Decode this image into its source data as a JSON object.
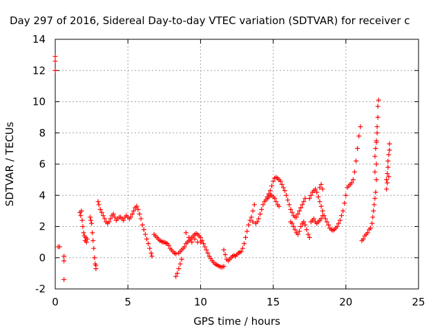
{
  "chart_data": {
    "type": "scatter",
    "title": "Day 297 of 2016, Sidereal Day-to-day VTEC variation (SDTVAR) for receiver c",
    "xlabel": "GPS time / hours",
    "ylabel": "SDTVAR / TECUs",
    "xlim": [
      0,
      25
    ],
    "ylim": [
      -2,
      14
    ],
    "xticks": [
      0,
      5,
      10,
      15,
      20,
      25
    ],
    "yticks": [
      -2,
      0,
      2,
      4,
      6,
      8,
      10,
      12,
      14
    ],
    "grid": true,
    "marker": "plus",
    "color": "#ff0000",
    "series": [
      {
        "points": [
          [
            0.0,
            12.9
          ],
          [
            0.0,
            12.6
          ],
          [
            0.0,
            12.0
          ],
          [
            0.2,
            0.7
          ],
          [
            0.3,
            0.7
          ],
          [
            0.6,
            0.1
          ],
          [
            0.6,
            -0.2
          ],
          [
            0.6,
            -1.4
          ],
          [
            1.7,
            2.9
          ],
          [
            1.75,
            2.7
          ],
          [
            1.8,
            3.0
          ],
          [
            1.85,
            2.4
          ],
          [
            1.9,
            2.0
          ],
          [
            1.95,
            1.6
          ],
          [
            2.0,
            1.4
          ],
          [
            2.05,
            1.1
          ],
          [
            2.1,
            1.3
          ],
          [
            2.15,
            1.0
          ],
          [
            2.2,
            1.2
          ],
          [
            2.4,
            2.6
          ],
          [
            2.45,
            2.4
          ],
          [
            2.5,
            2.2
          ],
          [
            2.55,
            1.6
          ],
          [
            2.6,
            1.1
          ],
          [
            2.65,
            0.6
          ],
          [
            2.7,
            0.0
          ],
          [
            2.75,
            -0.4
          ],
          [
            2.8,
            -0.7
          ],
          [
            2.8,
            -0.5
          ],
          [
            2.95,
            3.6
          ],
          [
            3.0,
            3.4
          ],
          [
            3.1,
            3.1
          ],
          [
            3.2,
            2.9
          ],
          [
            3.3,
            2.7
          ],
          [
            3.4,
            2.5
          ],
          [
            3.5,
            2.3
          ],
          [
            3.6,
            2.2
          ],
          [
            3.7,
            2.3
          ],
          [
            3.8,
            2.5
          ],
          [
            3.9,
            2.7
          ],
          [
            4.0,
            2.8
          ],
          [
            4.1,
            2.6
          ],
          [
            4.2,
            2.4
          ],
          [
            4.3,
            2.5
          ],
          [
            4.4,
            2.6
          ],
          [
            4.5,
            2.6
          ],
          [
            4.6,
            2.5
          ],
          [
            4.7,
            2.4
          ],
          [
            4.8,
            2.6
          ],
          [
            4.9,
            2.7
          ],
          [
            5.0,
            2.6
          ],
          [
            5.1,
            2.5
          ],
          [
            5.2,
            2.6
          ],
          [
            5.3,
            2.8
          ],
          [
            5.4,
            3.0
          ],
          [
            5.5,
            3.2
          ],
          [
            5.6,
            3.3
          ],
          [
            5.7,
            3.1
          ],
          [
            5.8,
            2.8
          ],
          [
            5.9,
            2.5
          ],
          [
            6.0,
            2.1
          ],
          [
            6.1,
            1.8
          ],
          [
            6.2,
            1.5
          ],
          [
            6.3,
            1.2
          ],
          [
            6.4,
            0.9
          ],
          [
            6.5,
            0.6
          ],
          [
            6.6,
            0.3
          ],
          [
            6.65,
            0.1
          ],
          [
            6.8,
            1.5
          ],
          [
            6.9,
            1.4
          ],
          [
            7.0,
            1.3
          ],
          [
            7.1,
            1.2
          ],
          [
            7.2,
            1.1
          ],
          [
            7.3,
            1.05
          ],
          [
            7.4,
            1.0
          ],
          [
            7.5,
            1.0
          ],
          [
            7.6,
            0.95
          ],
          [
            7.7,
            0.9
          ],
          [
            7.8,
            0.8
          ],
          [
            7.9,
            0.6
          ],
          [
            8.0,
            0.5
          ],
          [
            8.1,
            0.4
          ],
          [
            8.2,
            0.3
          ],
          [
            8.3,
            0.25
          ],
          [
            8.3,
            -1.2
          ],
          [
            8.4,
            -1.0
          ],
          [
            8.5,
            -0.7
          ],
          [
            8.6,
            -0.4
          ],
          [
            8.7,
            -0.1
          ],
          [
            8.5,
            0.3
          ],
          [
            8.6,
            0.4
          ],
          [
            8.7,
            0.5
          ],
          [
            8.8,
            0.6
          ],
          [
            8.9,
            0.7
          ],
          [
            9.0,
            0.9
          ],
          [
            9.1,
            1.0
          ],
          [
            9.2,
            1.1
          ],
          [
            9.3,
            1.2
          ],
          [
            9.4,
            1.3
          ],
          [
            9.5,
            1.4
          ],
          [
            9.6,
            1.5
          ],
          [
            9.7,
            1.55
          ],
          [
            9.8,
            1.5
          ],
          [
            9.9,
            1.4
          ],
          [
            10.0,
            1.3
          ],
          [
            10.1,
            1.1
          ],
          [
            10.2,
            0.9
          ],
          [
            9.0,
            1.6
          ],
          [
            9.2,
            1.3
          ],
          [
            9.4,
            1.0
          ],
          [
            9.6,
            1.2
          ],
          [
            9.8,
            1.0
          ],
          [
            10.0,
            1.0
          ],
          [
            10.3,
            0.7
          ],
          [
            10.4,
            0.5
          ],
          [
            10.5,
            0.3
          ],
          [
            10.6,
            0.1
          ],
          [
            10.7,
            -0.05
          ],
          [
            10.8,
            -0.2
          ],
          [
            10.9,
            -0.3
          ],
          [
            11.0,
            -0.4
          ],
          [
            11.1,
            -0.45
          ],
          [
            11.2,
            -0.5
          ],
          [
            11.3,
            -0.55
          ],
          [
            11.4,
            -0.6
          ],
          [
            11.5,
            -0.6
          ],
          [
            11.6,
            -0.55
          ],
          [
            11.6,
            0.5
          ],
          [
            11.7,
            0.2
          ],
          [
            11.8,
            -0.1
          ],
          [
            11.9,
            -0.2
          ],
          [
            12.0,
            -0.1
          ],
          [
            12.1,
            0.0
          ],
          [
            12.2,
            0.1
          ],
          [
            12.3,
            0.15
          ],
          [
            12.4,
            0.1
          ],
          [
            12.5,
            0.2
          ],
          [
            12.6,
            0.3
          ],
          [
            12.7,
            0.35
          ],
          [
            12.8,
            0.4
          ],
          [
            12.9,
            0.6
          ],
          [
            13.0,
            0.9
          ],
          [
            13.1,
            1.3
          ],
          [
            13.2,
            1.7
          ],
          [
            13.3,
            2.1
          ],
          [
            13.4,
            2.4
          ],
          [
            13.5,
            2.6
          ],
          [
            13.6,
            3.0
          ],
          [
            13.7,
            3.4
          ],
          [
            13.6,
            2.3
          ],
          [
            13.8,
            2.2
          ],
          [
            13.9,
            2.3
          ],
          [
            14.0,
            2.5
          ],
          [
            14.1,
            2.8
          ],
          [
            14.2,
            3.1
          ],
          [
            14.3,
            3.4
          ],
          [
            14.4,
            3.6
          ],
          [
            14.5,
            3.7
          ],
          [
            14.6,
            3.8
          ],
          [
            14.7,
            3.9
          ],
          [
            14.8,
            4.0
          ],
          [
            14.9,
            4.0
          ],
          [
            15.0,
            3.9
          ],
          [
            15.1,
            3.8
          ],
          [
            15.2,
            3.6
          ],
          [
            15.3,
            3.4
          ],
          [
            15.4,
            3.3
          ],
          [
            14.6,
            3.9
          ],
          [
            14.7,
            4.1
          ],
          [
            14.8,
            4.3
          ],
          [
            14.9,
            4.6
          ],
          [
            15.0,
            4.9
          ],
          [
            15.1,
            5.1
          ],
          [
            15.2,
            5.15
          ],
          [
            15.3,
            5.1
          ],
          [
            15.4,
            5.0
          ],
          [
            15.5,
            4.9
          ],
          [
            15.6,
            4.7
          ],
          [
            15.7,
            4.5
          ],
          [
            15.8,
            4.3
          ],
          [
            15.9,
            4.0
          ],
          [
            16.0,
            3.7
          ],
          [
            16.1,
            3.4
          ],
          [
            16.2,
            3.1
          ],
          [
            16.3,
            2.9
          ],
          [
            16.4,
            2.7
          ],
          [
            16.5,
            2.6
          ],
          [
            16.6,
            2.6
          ],
          [
            16.7,
            2.8
          ],
          [
            16.8,
            3.0
          ],
          [
            16.9,
            3.2
          ],
          [
            17.0,
            3.4
          ],
          [
            17.1,
            3.6
          ],
          [
            17.2,
            3.8
          ],
          [
            16.2,
            2.3
          ],
          [
            16.3,
            2.2
          ],
          [
            16.4,
            2.0
          ],
          [
            16.5,
            1.8
          ],
          [
            16.6,
            1.6
          ],
          [
            16.7,
            1.5
          ],
          [
            16.8,
            1.7
          ],
          [
            16.9,
            2.0
          ],
          [
            17.0,
            2.2
          ],
          [
            17.1,
            2.3
          ],
          [
            17.2,
            2.1
          ],
          [
            17.3,
            1.8
          ],
          [
            17.4,
            1.5
          ],
          [
            17.5,
            1.3
          ],
          [
            17.5,
            3.8
          ],
          [
            17.6,
            4.0
          ],
          [
            17.7,
            4.2
          ],
          [
            17.8,
            4.3
          ],
          [
            17.9,
            4.4
          ],
          [
            18.0,
            4.2
          ],
          [
            18.1,
            3.9
          ],
          [
            18.2,
            3.6
          ],
          [
            18.3,
            3.3
          ],
          [
            18.4,
            3.0
          ],
          [
            18.5,
            2.7
          ],
          [
            18.6,
            2.5
          ],
          [
            18.7,
            2.3
          ],
          [
            18.8,
            2.1
          ],
          [
            18.9,
            1.9
          ],
          [
            19.0,
            1.8
          ],
          [
            19.1,
            1.75
          ],
          [
            19.2,
            1.8
          ],
          [
            19.3,
            1.9
          ],
          [
            17.6,
            2.3
          ],
          [
            17.7,
            2.4
          ],
          [
            17.8,
            2.5
          ],
          [
            17.9,
            2.3
          ],
          [
            18.0,
            2.2
          ],
          [
            18.1,
            2.3
          ],
          [
            18.2,
            2.4
          ],
          [
            18.3,
            2.5
          ],
          [
            18.4,
            2.7
          ],
          [
            18.2,
            4.5
          ],
          [
            18.3,
            4.7
          ],
          [
            18.4,
            4.4
          ],
          [
            19.4,
            2.0
          ],
          [
            19.5,
            2.2
          ],
          [
            19.6,
            2.4
          ],
          [
            19.7,
            2.7
          ],
          [
            19.8,
            3.0
          ],
          [
            19.9,
            3.5
          ],
          [
            20.0,
            4.0
          ],
          [
            20.1,
            4.5
          ],
          [
            20.2,
            4.6
          ],
          [
            20.3,
            4.7
          ],
          [
            20.4,
            4.8
          ],
          [
            20.5,
            5.0
          ],
          [
            20.6,
            5.5
          ],
          [
            20.7,
            6.2
          ],
          [
            20.8,
            7.0
          ],
          [
            20.9,
            7.8
          ],
          [
            21.0,
            8.4
          ],
          [
            21.1,
            1.1
          ],
          [
            21.2,
            1.2
          ],
          [
            21.3,
            1.4
          ],
          [
            21.4,
            1.5
          ],
          [
            21.5,
            1.6
          ],
          [
            21.6,
            1.8
          ],
          [
            21.7,
            1.9
          ],
          [
            21.8,
            2.2
          ],
          [
            21.85,
            2.6
          ],
          [
            21.9,
            3.0
          ],
          [
            21.95,
            3.4
          ],
          [
            22.0,
            3.8
          ],
          [
            22.05,
            4.2
          ],
          [
            22.1,
            5.0
          ],
          [
            22.1,
            6.0
          ],
          [
            22.1,
            7.5
          ],
          [
            22.15,
            8.4
          ],
          [
            22.2,
            9.0
          ],
          [
            22.2,
            9.7
          ],
          [
            22.25,
            10.1
          ],
          [
            22.0,
            5.5
          ],
          [
            22.0,
            6.5
          ],
          [
            22.05,
            7.0
          ],
          [
            22.1,
            7.4
          ],
          [
            22.15,
            8.0
          ],
          [
            22.8,
            4.4
          ],
          [
            22.8,
            5.0
          ],
          [
            22.85,
            5.4
          ],
          [
            22.9,
            5.8
          ],
          [
            22.9,
            6.2
          ],
          [
            22.95,
            6.6
          ],
          [
            23.0,
            6.9
          ],
          [
            23.0,
            7.3
          ],
          [
            22.85,
            4.8
          ],
          [
            22.95,
            5.2
          ]
        ]
      }
    ]
  }
}
